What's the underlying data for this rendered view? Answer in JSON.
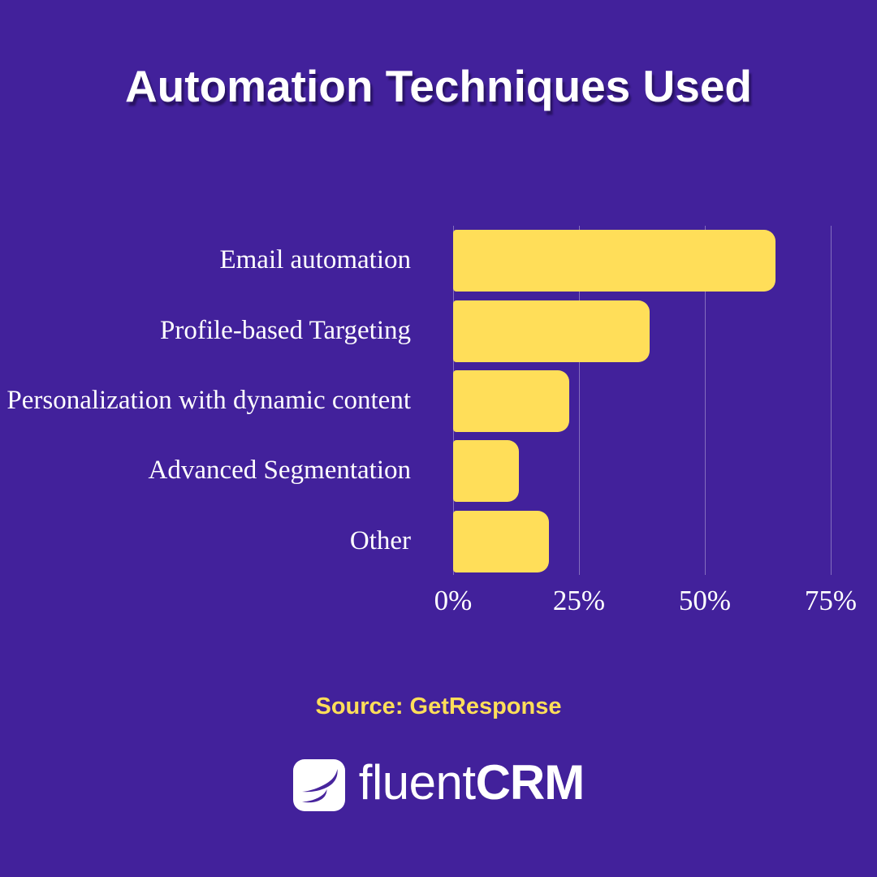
{
  "colors": {
    "background": "#42219B",
    "bar": "#FFDE59",
    "text": "#FFFFFF",
    "accent": "#FFDE59",
    "gridline": "rgba(255,255,255,0.35)",
    "logo_glyph": "#48259D"
  },
  "title": {
    "text": "Automation Techniques Used"
  },
  "chart_data": {
    "type": "bar",
    "orientation": "horizontal",
    "title": "Automation Techniques Used",
    "categories": [
      "Email automation",
      "Profile-based Targeting",
      "Personalization with dynamic content",
      "Advanced Segmentation",
      "Other"
    ],
    "values": [
      64,
      39,
      23,
      13,
      19
    ],
    "unit": "%",
    "xlabel": "",
    "ylabel": "",
    "xlim": [
      0,
      75
    ],
    "x_ticks": [
      {
        "value": 0,
        "label": "0%"
      },
      {
        "value": 25,
        "label": "25%"
      },
      {
        "value": 50,
        "label": "50%"
      },
      {
        "value": 75,
        "label": "75%"
      }
    ],
    "grid": "vertical",
    "legend": false,
    "bar_color": "#FFDE59",
    "data_labels": false
  },
  "source": {
    "text": "Source: GetResponse"
  },
  "logo": {
    "name": "fluentCRM",
    "brand_regular": "fluent",
    "brand_bold": "CRM",
    "icon": "fluentcrm-swoosh-icon"
  }
}
